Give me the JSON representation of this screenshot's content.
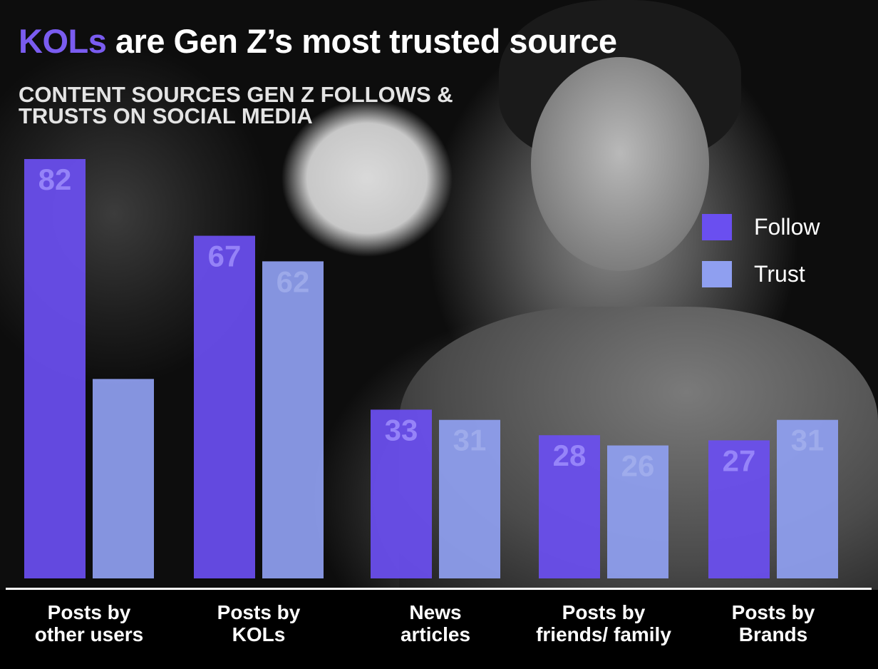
{
  "title": {
    "accent": "KOLs",
    "rest": " are Gen Z’s most trusted source"
  },
  "subtitle_line1": "CONTENT SOURCES GEN Z FOLLOWS &",
  "subtitle_line2": "TRUSTS ON SOCIAL MEDIA",
  "colors": {
    "follow": "#6a4ff0",
    "trust": "#8f9ff0",
    "accent": "#7a5cf0"
  },
  "chart_data": {
    "type": "bar",
    "title": "KOLs are Gen Z’s most trusted source",
    "subtitle": "CONTENT SOURCES GEN Z FOLLOWS & TRUSTS ON SOCIAL MEDIA",
    "categories": [
      [
        "Posts by",
        "other users"
      ],
      [
        "Posts by",
        "KOLs"
      ],
      [
        "News",
        "articles"
      ],
      [
        "Posts by",
        "friends/ family"
      ],
      [
        "Posts by",
        "Brands"
      ]
    ],
    "series": [
      {
        "name": "Follow",
        "values": [
          82,
          67,
          33,
          28,
          27
        ],
        "labels": [
          "82",
          "67",
          "33",
          "28",
          "27"
        ]
      },
      {
        "name": "Trust",
        "values": [
          39,
          62,
          31,
          26,
          31
        ],
        "labels": [
          "",
          "62",
          "31",
          "26",
          "31"
        ]
      }
    ],
    "ylim": [
      0,
      82
    ],
    "legend_position": "right",
    "grid": false
  }
}
